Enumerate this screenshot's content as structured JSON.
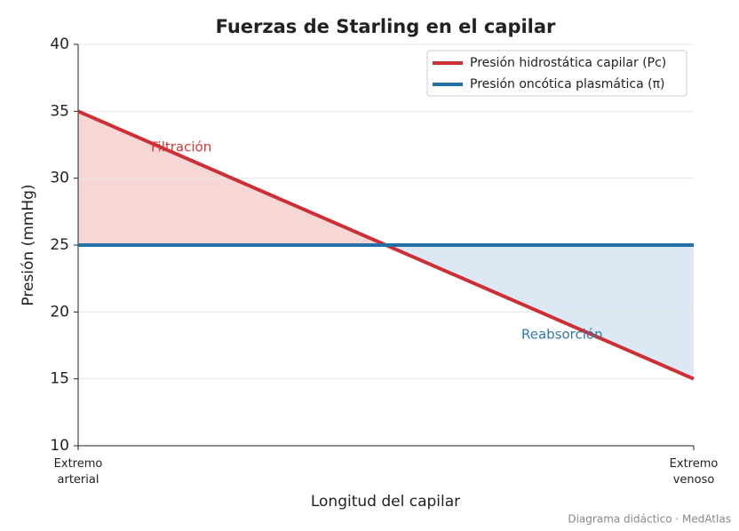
{
  "chart_data": {
    "type": "line",
    "title": "Fuerzas de Starling en el capilar",
    "x_label": "Longitud del capilar",
    "y_label": "Presión (mmHg)",
    "x": [
      0,
      1
    ],
    "xlim": [
      0,
      1
    ],
    "xticks": [
      {
        "value": 0,
        "label": "Extremo arterial"
      },
      {
        "value": 1,
        "label": "Extremo venoso"
      }
    ],
    "ylim": [
      10,
      40
    ],
    "yticks": [
      10,
      15,
      20,
      25,
      30,
      35,
      40
    ],
    "grid": true,
    "legend": "upper right",
    "series": [
      {
        "name": "Presión hidrostática capilar (Pc)",
        "color": "#cc2f35",
        "values": [
          35,
          15
        ]
      },
      {
        "name": "Presión oncótica plasmática (π)",
        "color": "#2471a8",
        "values": [
          25,
          25
        ]
      }
    ],
    "fill_colors": [
      "#f7d6d6",
      "#dce8f3"
    ],
    "annotations": [
      {
        "text": "Filtración",
        "color": "#d0393b"
      },
      {
        "text": "Reabsorción",
        "color": "#2f7aaa"
      }
    ]
  },
  "footer": "Diagrama didáctico · MedAtlas"
}
